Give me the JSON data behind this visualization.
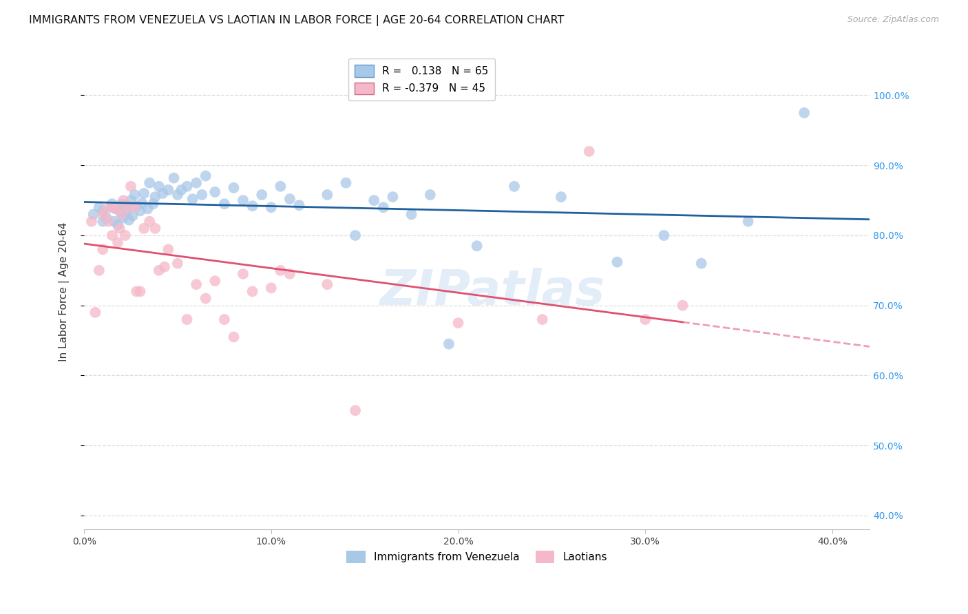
{
  "title": "IMMIGRANTS FROM VENEZUELA VS LAOTIAN IN LABOR FORCE | AGE 20-64 CORRELATION CHART",
  "source": "Source: ZipAtlas.com",
  "ylabel": "In Labor Force | Age 20-64",
  "xlim": [
    0.0,
    0.42
  ],
  "ylim": [
    0.38,
    1.06
  ],
  "blue_R": "0.138",
  "blue_N": "65",
  "pink_R": "-0.379",
  "pink_N": "45",
  "blue_color": "#a8c8e8",
  "pink_color": "#f4b8c8",
  "blue_line_color": "#2060a0",
  "pink_line_color": "#e05070",
  "watermark": "ZIPatlas",
  "legend_label_blue": "Immigrants from Venezuela",
  "legend_label_pink": "Laotians",
  "xtick_labels": [
    "0.0%",
    "10.0%",
    "20.0%",
    "30.0%",
    "40.0%"
  ],
  "xtick_vals": [
    0.0,
    0.1,
    0.2,
    0.3,
    0.4
  ],
  "ytick_labels": [
    "100.0%",
    "90.0%",
    "80.0%",
    "70.0%",
    "60.0%",
    "50.0%",
    "40.0%"
  ],
  "ytick_vals": [
    1.0,
    0.9,
    0.8,
    0.7,
    0.6,
    0.5,
    0.4
  ],
  "blue_x": [
    0.005,
    0.008,
    0.01,
    0.01,
    0.012,
    0.015,
    0.015,
    0.016,
    0.017,
    0.018,
    0.02,
    0.02,
    0.021,
    0.022,
    0.023,
    0.024,
    0.025,
    0.026,
    0.027,
    0.028,
    0.03,
    0.031,
    0.032,
    0.034,
    0.035,
    0.037,
    0.038,
    0.04,
    0.042,
    0.045,
    0.048,
    0.05,
    0.052,
    0.055,
    0.058,
    0.06,
    0.063,
    0.065,
    0.07,
    0.075,
    0.08,
    0.085,
    0.09,
    0.095,
    0.1,
    0.105,
    0.11,
    0.115,
    0.13,
    0.14,
    0.145,
    0.155,
    0.16,
    0.165,
    0.175,
    0.185,
    0.195,
    0.21,
    0.23,
    0.255,
    0.285,
    0.31,
    0.33,
    0.355,
    0.385
  ],
  "blue_y": [
    0.83,
    0.84,
    0.82,
    0.835,
    0.825,
    0.84,
    0.845,
    0.82,
    0.838,
    0.815,
    0.83,
    0.845,
    0.825,
    0.843,
    0.835,
    0.822,
    0.85,
    0.828,
    0.858,
    0.842,
    0.835,
    0.846,
    0.86,
    0.838,
    0.875,
    0.845,
    0.855,
    0.87,
    0.86,
    0.865,
    0.882,
    0.858,
    0.865,
    0.87,
    0.852,
    0.875,
    0.858,
    0.885,
    0.862,
    0.845,
    0.868,
    0.85,
    0.842,
    0.858,
    0.84,
    0.87,
    0.852,
    0.843,
    0.858,
    0.875,
    0.8,
    0.85,
    0.84,
    0.855,
    0.83,
    0.858,
    0.645,
    0.785,
    0.87,
    0.855,
    0.762,
    0.8,
    0.76,
    0.82,
    0.975
  ],
  "pink_x": [
    0.004,
    0.006,
    0.008,
    0.01,
    0.01,
    0.012,
    0.013,
    0.015,
    0.016,
    0.017,
    0.018,
    0.019,
    0.02,
    0.021,
    0.022,
    0.023,
    0.025,
    0.027,
    0.028,
    0.03,
    0.032,
    0.035,
    0.038,
    0.04,
    0.043,
    0.045,
    0.05,
    0.055,
    0.06,
    0.065,
    0.07,
    0.075,
    0.08,
    0.085,
    0.09,
    0.1,
    0.105,
    0.11,
    0.13,
    0.145,
    0.2,
    0.245,
    0.27,
    0.3,
    0.32
  ],
  "pink_y": [
    0.82,
    0.69,
    0.75,
    0.83,
    0.78,
    0.838,
    0.82,
    0.8,
    0.84,
    0.838,
    0.79,
    0.81,
    0.83,
    0.85,
    0.8,
    0.84,
    0.87,
    0.84,
    0.72,
    0.72,
    0.81,
    0.82,
    0.81,
    0.75,
    0.755,
    0.78,
    0.76,
    0.68,
    0.73,
    0.71,
    0.735,
    0.68,
    0.655,
    0.745,
    0.72,
    0.725,
    0.75,
    0.745,
    0.73,
    0.55,
    0.675,
    0.68,
    0.92,
    0.68,
    0.7
  ],
  "grid_color": "#dddddd",
  "bg_color": "#ffffff",
  "title_fontsize": 11.5,
  "tick_fontsize": 10,
  "legend_fontsize": 11,
  "ylabel_fontsize": 11
}
